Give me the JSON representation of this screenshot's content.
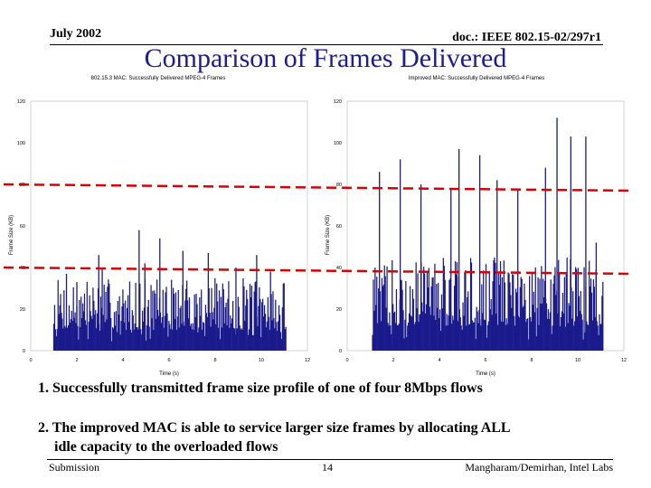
{
  "header": {
    "date": "July 2002",
    "doc_id": "doc.: IEEE 802.15-02/297r1"
  },
  "title": "Comparison of Frames Delivered",
  "chart_data": [
    {
      "type": "bar",
      "title": "802.15.3 MAC: Successfully Delivered MPEG-4 Frames",
      "xlabel": "Time (s)",
      "ylabel": "Frame Size (KB)",
      "xlim": [
        0,
        12
      ],
      "ylim": [
        0,
        120
      ],
      "xticks": [
        "0",
        "2",
        "4",
        "6",
        "8",
        "10",
        "12"
      ],
      "yticks": [
        "0",
        "20",
        "40",
        "60",
        "80",
        "100",
        "120"
      ],
      "bar_color": "#1a1a8c",
      "data_range_s": [
        1.0,
        11.1
      ],
      "typical_frame_kb": [
        10,
        35
      ],
      "peak_points": [
        [
          1.55,
          37
        ],
        [
          2.0,
          33
        ],
        [
          2.95,
          46
        ],
        [
          3.1,
          40
        ],
        [
          4.7,
          58
        ],
        [
          4.95,
          42
        ],
        [
          5.6,
          54
        ],
        [
          6.6,
          48
        ],
        [
          7.7,
          47
        ],
        [
          8.9,
          40
        ],
        [
          9.8,
          46
        ],
        [
          10.4,
          38
        ]
      ],
      "reference_lines_kb": [
        40,
        80
      ],
      "reference_line_color": "#dd0000"
    },
    {
      "type": "bar",
      "title": "Improved MAC: Successfully Delivered MPEG-4 Frames",
      "xlabel": "Time (s)",
      "ylabel": "Frame Size (KB)",
      "xlim": [
        0,
        12
      ],
      "ylim": [
        0,
        120
      ],
      "xticks": [
        "0",
        "2",
        "4",
        "6",
        "8",
        "10",
        "12"
      ],
      "yticks": [
        "0",
        "20",
        "40",
        "60",
        "80",
        "100",
        "120"
      ],
      "bar_color": "#1a1a8c",
      "data_range_s": [
        1.1,
        11.1
      ],
      "typical_frame_kb": [
        12,
        45
      ],
      "peak_points": [
        [
          1.4,
          86
        ],
        [
          2.3,
          92
        ],
        [
          3.2,
          80
        ],
        [
          4.5,
          78
        ],
        [
          4.85,
          97
        ],
        [
          5.75,
          94
        ],
        [
          6.5,
          82
        ],
        [
          7.4,
          77
        ],
        [
          8.6,
          88
        ],
        [
          9.1,
          112
        ],
        [
          9.7,
          103
        ],
        [
          10.35,
          103
        ],
        [
          10.8,
          52
        ]
      ],
      "reference_lines_kb": [
        40,
        80
      ],
      "reference_line_color": "#dd0000"
    }
  ],
  "notes": [
    "1. Successfully transmitted frame size profile of one of four 8Mbps flows",
    "2. The improved MAC is able to service larger size frames by allocating ALL",
    "idle capacity to the overloaded flows"
  ],
  "footer": {
    "left": "Submission",
    "page": "14",
    "authors": "Mangharam/Demirhan, Intel Labs"
  }
}
